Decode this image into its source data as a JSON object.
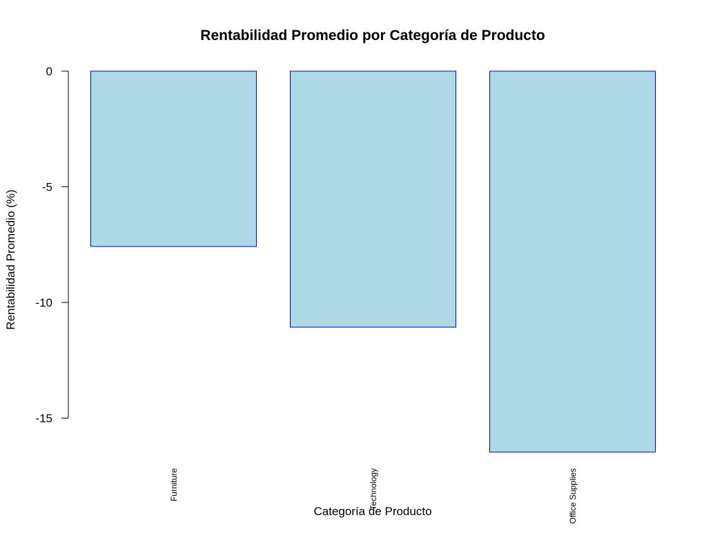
{
  "chart_data": {
    "type": "bar",
    "title": "Rentabilidad Promedio por Categoría de Producto",
    "xlabel": "Categoría de Producto",
    "ylabel": "Rentabilidad Promedio (%)",
    "categories": [
      "Furniture",
      "Technology",
      "Office Supplies"
    ],
    "values": [
      -7.58,
      -11.07,
      -16.47
    ],
    "ylim": [
      -16.47,
      0
    ],
    "yticks": [
      0,
      -5,
      -10,
      -15
    ],
    "ytick_labels": [
      "0",
      "-5",
      "-10",
      "-15"
    ],
    "grid": false,
    "legend": "none",
    "colors": {
      "bar_fill": "#ADD8E6",
      "bar_stroke": "#0000CD",
      "axis": "#000000",
      "background": "#FFFFFF"
    }
  }
}
